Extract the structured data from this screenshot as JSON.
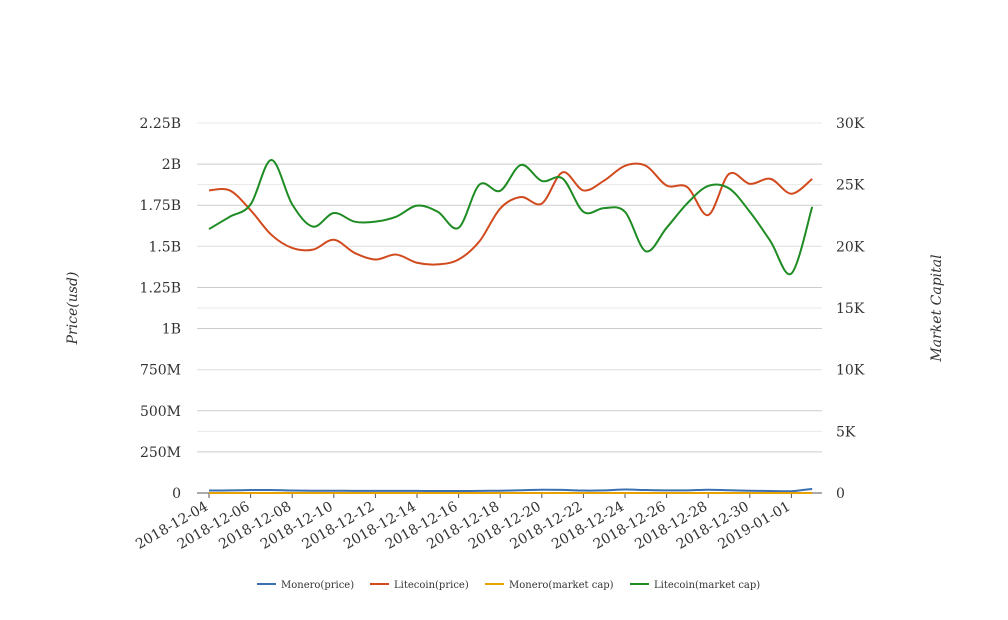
{
  "chart_data": {
    "type": "line",
    "title": "",
    "xlabel": "",
    "ylabel_left": "Price(usd)",
    "ylabel_right": "Market Capital",
    "grid": true,
    "legend_position": "bottom",
    "y_left": {
      "range": [
        0,
        2250000000
      ],
      "ticks": [
        {
          "value": 0,
          "label": "0"
        },
        {
          "value": 250000000,
          "label": "250M"
        },
        {
          "value": 500000000,
          "label": "500M"
        },
        {
          "value": 750000000,
          "label": "750M"
        },
        {
          "value": 1000000000,
          "label": "1B"
        },
        {
          "value": 1250000000,
          "label": "1.25B"
        },
        {
          "value": 1500000000,
          "label": "1.5B"
        },
        {
          "value": 1750000000,
          "label": "1.75B"
        },
        {
          "value": 2000000000,
          "label": "2B"
        },
        {
          "value": 2250000000,
          "label": "2.25B"
        }
      ]
    },
    "y_right": {
      "range": [
        0,
        30000
      ],
      "ticks": [
        {
          "value": 0,
          "label": "0"
        },
        {
          "value": 5000,
          "label": "5K"
        },
        {
          "value": 10000,
          "label": "10K"
        },
        {
          "value": 15000,
          "label": "15K"
        },
        {
          "value": 20000,
          "label": "20K"
        },
        {
          "value": 25000,
          "label": "25K"
        },
        {
          "value": 30000,
          "label": "30K"
        }
      ]
    },
    "x": [
      "2018-12-04",
      "2018-12-05",
      "2018-12-06",
      "2018-12-07",
      "2018-12-08",
      "2018-12-09",
      "2018-12-10",
      "2018-12-11",
      "2018-12-12",
      "2018-12-13",
      "2018-12-14",
      "2018-12-15",
      "2018-12-16",
      "2018-12-17",
      "2018-12-18",
      "2018-12-19",
      "2018-12-20",
      "2018-12-21",
      "2018-12-22",
      "2018-12-23",
      "2018-12-24",
      "2018-12-25",
      "2018-12-26",
      "2018-12-27",
      "2018-12-28",
      "2018-12-29",
      "2018-12-30",
      "2018-12-31",
      "2019-01-01",
      "2019-01-02"
    ],
    "x_tick_labels": [
      "2018-12-04",
      "2018-12-06",
      "2018-12-08",
      "2018-12-10",
      "2018-12-12",
      "2018-12-14",
      "2018-12-16",
      "2018-12-18",
      "2018-12-20",
      "2018-12-22",
      "2018-12-24",
      "2018-12-26",
      "2018-12-28",
      "2018-12-30",
      "2019-01-01"
    ],
    "series": [
      {
        "name": "Monero(price)",
        "axis": "left",
        "color": "#3a6fb0",
        "values": [
          15000000,
          16000000,
          18000000,
          18000000,
          15000000,
          14000000,
          14000000,
          13000000,
          13000000,
          13000000,
          13000000,
          12000000,
          12000000,
          13000000,
          14000000,
          17000000,
          20000000,
          19000000,
          15000000,
          16000000,
          21000000,
          18000000,
          16000000,
          16000000,
          20000000,
          17000000,
          14000000,
          12000000,
          11000000,
          25000000
        ]
      },
      {
        "name": "Litecoin(price)",
        "axis": "left",
        "color": "#d14a1e",
        "values": [
          1840000000,
          1840000000,
          1720000000,
          1570000000,
          1490000000,
          1480000000,
          1540000000,
          1460000000,
          1420000000,
          1450000000,
          1400000000,
          1390000000,
          1420000000,
          1530000000,
          1730000000,
          1800000000,
          1760000000,
          1950000000,
          1840000000,
          1900000000,
          1990000000,
          1990000000,
          1870000000,
          1860000000,
          1690000000,
          1940000000,
          1880000000,
          1910000000,
          1820000000,
          1910000000
        ]
      },
      {
        "name": "Monero(market cap)",
        "axis": "right",
        "color": "#e8a200",
        "values": [
          0,
          0,
          0,
          0,
          0,
          0,
          0,
          0,
          0,
          0,
          0,
          0,
          0,
          0,
          0,
          0,
          0,
          0,
          0,
          0,
          0,
          0,
          0,
          0,
          0,
          0,
          0,
          0,
          0,
          0
        ]
      },
      {
        "name": "Litecoin(market cap)",
        "axis": "right",
        "color": "#1e8c23",
        "values": [
          21400,
          22400,
          23400,
          27000,
          23400,
          21600,
          22700,
          22000,
          22000,
          22400,
          23300,
          22800,
          21500,
          25000,
          24500,
          26600,
          25300,
          25500,
          22800,
          23100,
          22800,
          19600,
          21500,
          23500,
          24900,
          24700,
          22800,
          20400,
          17800,
          23200
        ]
      }
    ]
  }
}
